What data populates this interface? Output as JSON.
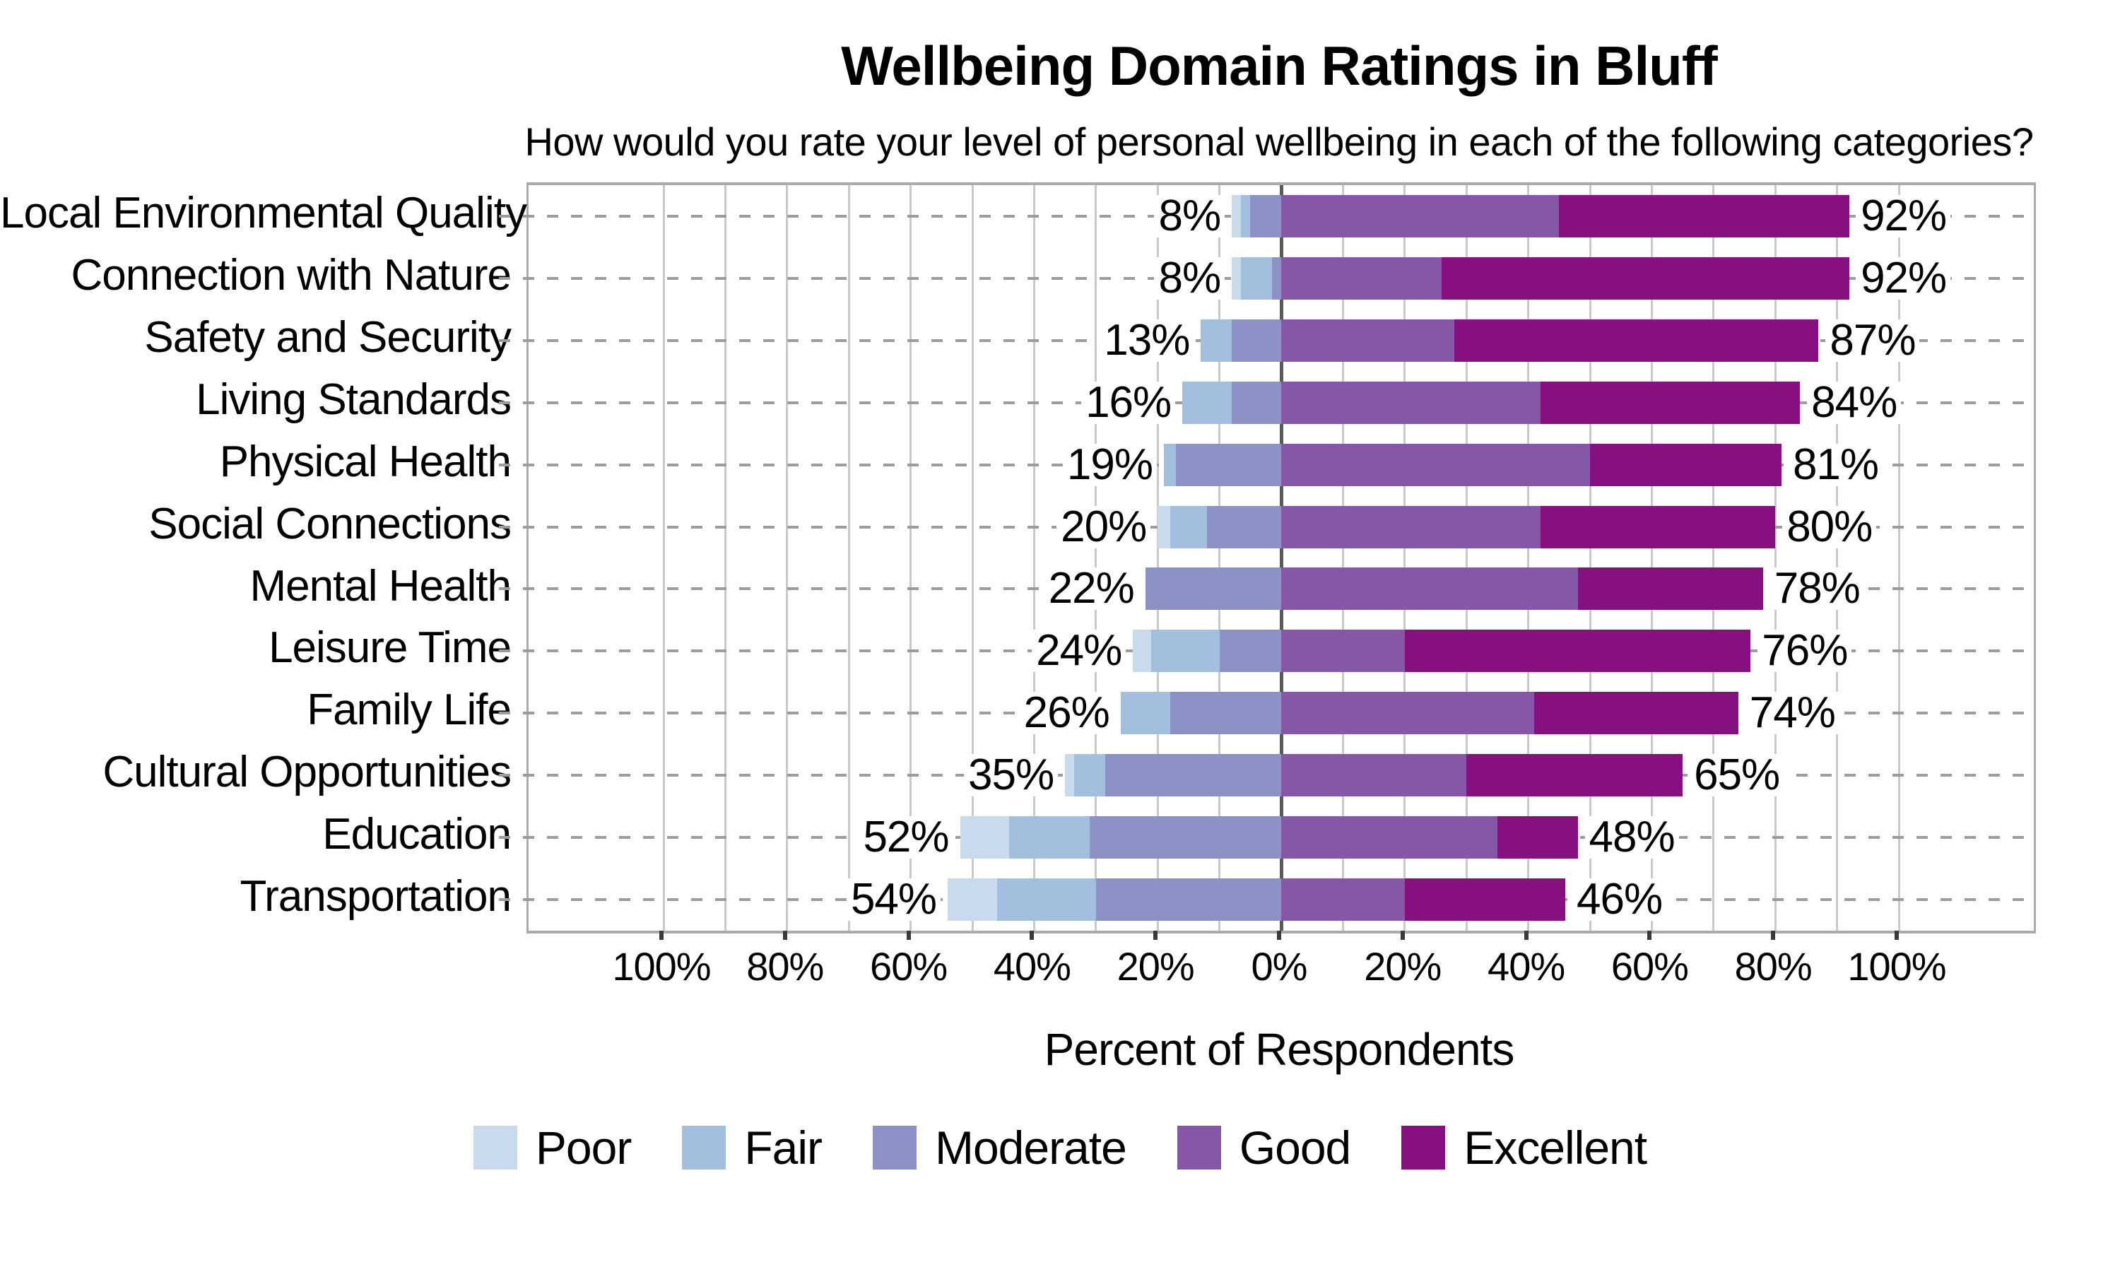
{
  "title": "Wellbeing Domain Ratings in Bluff",
  "subtitle": "How would you rate your level of personal wellbeing in each of the following categories?",
  "xlabel": "Percent of Respondents",
  "colors": {
    "poor": "#C9DAEC",
    "fair": "#A2C0DD",
    "moderate": "#8C92C6",
    "good": "#8757A7",
    "excellent": "#871080",
    "gridline": "#CACACA",
    "center_line": "#5A5A5A",
    "plot_border": "#ABABAB",
    "dash_leader": "#9C9C9C",
    "tick": "#3A3A3A"
  },
  "legend": [
    "Poor",
    "Fair",
    "Moderate",
    "Good",
    "Excellent"
  ],
  "chart_data": {
    "type": "diverging_stacked_bar",
    "orientation": "horizontal",
    "categories": [
      "Local Environmental Quality",
      "Connection with Nature",
      "Safety and Security",
      "Living Standards",
      "Physical Health",
      "Social Connections",
      "Mental Health",
      "Leisure Time",
      "Family Life",
      "Cultural Opportunities",
      "Education",
      "Transportation"
    ],
    "series": [
      {
        "name": "Poor",
        "side": "left",
        "values": [
          1.5,
          1.5,
          0,
          0,
          0,
          2,
          0,
          3,
          0,
          1.5,
          8,
          8
        ]
      },
      {
        "name": "Fair",
        "side": "left",
        "values": [
          1.5,
          5,
          5,
          8,
          2,
          6,
          0,
          11,
          8,
          5,
          13,
          16
        ]
      },
      {
        "name": "Moderate",
        "side": "left",
        "values": [
          5,
          1.5,
          8,
          8,
          17,
          12,
          22,
          10,
          18,
          28.5,
          31,
          30
        ]
      },
      {
        "name": "Good",
        "side": "right",
        "values": [
          45,
          26,
          28,
          42,
          50,
          42,
          48,
          20,
          41,
          30,
          35,
          20
        ]
      },
      {
        "name": "Excellent",
        "side": "right",
        "values": [
          47,
          66,
          59,
          42,
          31,
          38,
          30,
          56,
          33,
          35,
          13,
          26
        ]
      }
    ],
    "left_total_labels": [
      "8%",
      "8%",
      "13%",
      "16%",
      "19%",
      "20%",
      "22%",
      "24%",
      "26%",
      "35%",
      "52%",
      "54%"
    ],
    "right_total_labels": [
      "92%",
      "92%",
      "87%",
      "84%",
      "81%",
      "80%",
      "78%",
      "76%",
      "74%",
      "65%",
      "48%",
      "46%"
    ],
    "x_axis": {
      "tick_values": [
        -100,
        -80,
        -60,
        -40,
        -20,
        0,
        20,
        40,
        60,
        80,
        100
      ],
      "tick_labels": [
        "100%",
        "80%",
        "60%",
        "40%",
        "20%",
        "0%",
        "20%",
        "40%",
        "60%",
        "80%",
        "100%"
      ],
      "gridline_step": 10,
      "xlim": [
        -121.9,
        121.9
      ],
      "grid": true
    }
  }
}
